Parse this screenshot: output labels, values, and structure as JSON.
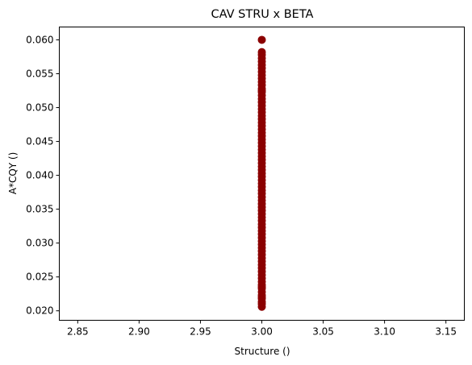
{
  "chart_data": {
    "type": "scatter",
    "title": "CAV STRU x BETA",
    "xlabel": "Structure ()",
    "ylabel": "A*CQY ()",
    "xlim": [
      2.835,
      3.165
    ],
    "ylim": [
      0.0186,
      0.0619
    ],
    "xticks": [
      "2.85",
      "2.90",
      "2.95",
      "3.00",
      "3.05",
      "3.10",
      "3.15"
    ],
    "yticks": [
      "0.020",
      "0.025",
      "0.030",
      "0.035",
      "0.040",
      "0.045",
      "0.050",
      "0.055",
      "0.060"
    ],
    "grid": false,
    "marker_color": "#8b0000",
    "series": [
      {
        "x": [
          3.0,
          3.0,
          3.0,
          3.0,
          3.0,
          3.0,
          3.0,
          3.0,
          3.0,
          3.0,
          3.0,
          3.0,
          3.0,
          3.0,
          3.0,
          3.0,
          3.0,
          3.0,
          3.0,
          3.0,
          3.0,
          3.0,
          3.0,
          3.0,
          3.0,
          3.0,
          3.0,
          3.0,
          3.0,
          3.0,
          3.0,
          3.0,
          3.0,
          3.0,
          3.0,
          3.0,
          3.0,
          3.0,
          3.0,
          3.0,
          3.0,
          3.0,
          3.0,
          3.0,
          3.0,
          3.0,
          3.0,
          3.0,
          3.0,
          3.0,
          3.0,
          3.0,
          3.0,
          3.0,
          3.0,
          3.0,
          3.0,
          3.0,
          3.0,
          3.0,
          3.0,
          3.0,
          3.0,
          3.0,
          3.0,
          3.0,
          3.0,
          3.0,
          3.0,
          3.0,
          3.0,
          3.0,
          3.0,
          3.0,
          3.0,
          3.0,
          3.0,
          3.0,
          3.0,
          3.0,
          3.0
        ],
        "y": [
          0.0206,
          0.0213,
          0.0218,
          0.0223,
          0.0228,
          0.0233,
          0.0238,
          0.0243,
          0.0248,
          0.0253,
          0.0258,
          0.0263,
          0.0268,
          0.0273,
          0.0278,
          0.0283,
          0.0288,
          0.0293,
          0.0298,
          0.0303,
          0.0308,
          0.0313,
          0.0318,
          0.0323,
          0.0328,
          0.0333,
          0.0338,
          0.0343,
          0.0348,
          0.0353,
          0.0358,
          0.0363,
          0.0368,
          0.0373,
          0.0378,
          0.0383,
          0.0388,
          0.0393,
          0.0398,
          0.0403,
          0.0408,
          0.0413,
          0.0418,
          0.0423,
          0.0428,
          0.0433,
          0.0438,
          0.0443,
          0.0448,
          0.0453,
          0.0458,
          0.0463,
          0.0468,
          0.0473,
          0.0478,
          0.0483,
          0.0488,
          0.0493,
          0.0498,
          0.0503,
          0.0508,
          0.0513,
          0.0518,
          0.0523,
          0.0528,
          0.0533,
          0.0538,
          0.0543,
          0.0548,
          0.0553,
          0.0558,
          0.0563,
          0.0568,
          0.0573,
          0.0578,
          0.0582,
          0.06,
          0.021,
          0.022,
          0.0235,
          0.0525
        ]
      }
    ]
  }
}
